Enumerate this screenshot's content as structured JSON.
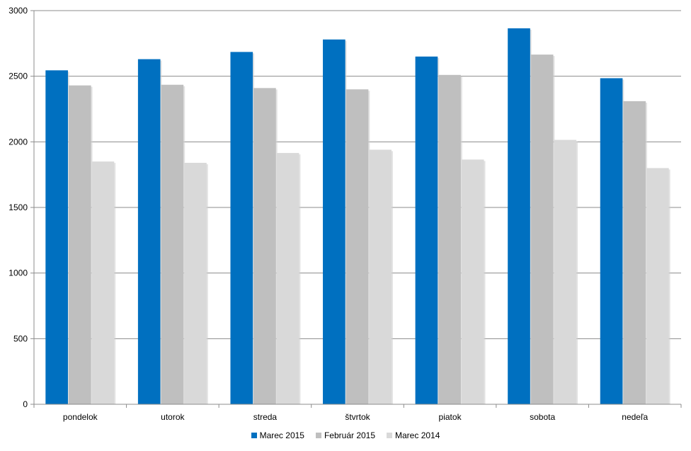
{
  "chart_data": {
    "type": "bar",
    "categories": [
      "pondelok",
      "utorok",
      "streda",
      "štvrtok",
      "piatok",
      "sobota",
      "nedeľa"
    ],
    "series": [
      {
        "name": "Marec 2015",
        "color": "#0070C0",
        "values": [
          2545,
          2630,
          2685,
          2780,
          2650,
          2865,
          2485
        ]
      },
      {
        "name": "Február 2015",
        "color": "#BFBFBF",
        "values": [
          2430,
          2435,
          2410,
          2400,
          2510,
          2665,
          2310
        ]
      },
      {
        "name": "Marec 2014",
        "color": "#D9D9D9",
        "values": [
          1850,
          1840,
          1915,
          1940,
          1865,
          2015,
          1800
        ]
      }
    ],
    "yticks": [
      0,
      500,
      1000,
      1500,
      2000,
      2500,
      3000
    ],
    "ylim": [
      0,
      3000
    ],
    "grid": true,
    "legend_position": "bottom"
  }
}
